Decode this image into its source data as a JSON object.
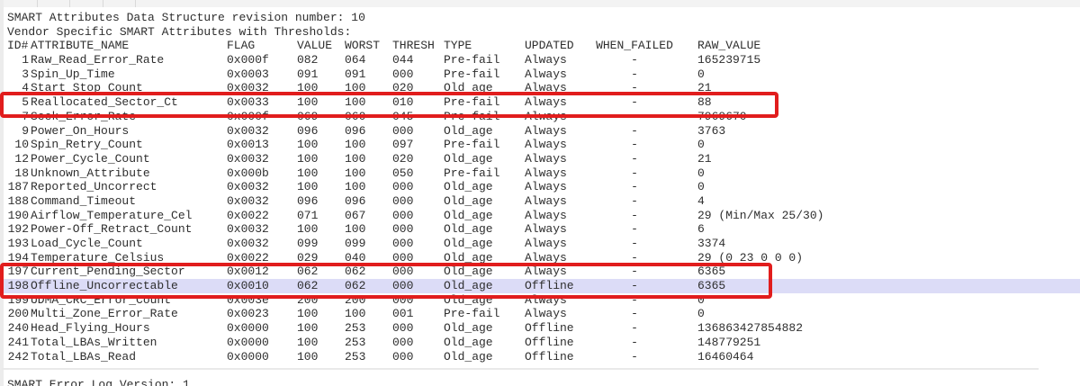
{
  "colors": {
    "background": "#ffffff",
    "text": "#2e2e2e",
    "annotation_red": "#e11d1d",
    "row_highlight": "#dcdcf7"
  },
  "report": {
    "revision_line": "SMART Attributes Data Structure revision number: 10",
    "vendor_line": "Vendor Specific SMART Attributes with Thresholds:",
    "footer_line": "SMART Error Log Version: 1"
  },
  "table": {
    "columns": [
      "ID#",
      "ATTRIBUTE_NAME",
      "FLAG",
      "VALUE",
      "WORST",
      "THRESH",
      "TYPE",
      "UPDATED",
      "WHEN_FAILED",
      "RAW_VALUE"
    ],
    "rows": [
      {
        "id": "1",
        "name": "Raw_Read_Error_Rate",
        "flag": "0x000f",
        "value": "082",
        "worst": "064",
        "thresh": "044",
        "type": "Pre-fail",
        "updated": "Always",
        "when_failed": "-",
        "raw_value": "165239715",
        "highlighted": false
      },
      {
        "id": "3",
        "name": "Spin_Up_Time",
        "flag": "0x0003",
        "value": "091",
        "worst": "091",
        "thresh": "000",
        "type": "Pre-fail",
        "updated": "Always",
        "when_failed": "-",
        "raw_value": "0",
        "highlighted": false
      },
      {
        "id": "4",
        "name": "Start_Stop_Count",
        "flag": "0x0032",
        "value": "100",
        "worst": "100",
        "thresh": "020",
        "type": "Old_age",
        "updated": "Always",
        "when_failed": "-",
        "raw_value": "21",
        "highlighted": false
      },
      {
        "id": "5",
        "name": "Reallocated_Sector_Ct",
        "flag": "0x0033",
        "value": "100",
        "worst": "100",
        "thresh": "010",
        "type": "Pre-fail",
        "updated": "Always",
        "when_failed": "-",
        "raw_value": "88",
        "highlighted": false
      },
      {
        "id": "7",
        "name": "Seek_Error_Rate",
        "flag": "0x000f",
        "value": "069",
        "worst": "060",
        "thresh": "045",
        "type": "Pre-fail",
        "updated": "Always",
        "when_failed": "-",
        "raw_value": "7969670",
        "highlighted": false
      },
      {
        "id": "9",
        "name": "Power_On_Hours",
        "flag": "0x0032",
        "value": "096",
        "worst": "096",
        "thresh": "000",
        "type": "Old_age",
        "updated": "Always",
        "when_failed": "-",
        "raw_value": "3763",
        "highlighted": false
      },
      {
        "id": "10",
        "name": "Spin_Retry_Count",
        "flag": "0x0013",
        "value": "100",
        "worst": "100",
        "thresh": "097",
        "type": "Pre-fail",
        "updated": "Always",
        "when_failed": "-",
        "raw_value": "0",
        "highlighted": false
      },
      {
        "id": "12",
        "name": "Power_Cycle_Count",
        "flag": "0x0032",
        "value": "100",
        "worst": "100",
        "thresh": "020",
        "type": "Old_age",
        "updated": "Always",
        "when_failed": "-",
        "raw_value": "21",
        "highlighted": false
      },
      {
        "id": "18",
        "name": "Unknown_Attribute",
        "flag": "0x000b",
        "value": "100",
        "worst": "100",
        "thresh": "050",
        "type": "Pre-fail",
        "updated": "Always",
        "when_failed": "-",
        "raw_value": "0",
        "highlighted": false
      },
      {
        "id": "187",
        "name": "Reported_Uncorrect",
        "flag": "0x0032",
        "value": "100",
        "worst": "100",
        "thresh": "000",
        "type": "Old_age",
        "updated": "Always",
        "when_failed": "-",
        "raw_value": "0",
        "highlighted": false
      },
      {
        "id": "188",
        "name": "Command_Timeout",
        "flag": "0x0032",
        "value": "096",
        "worst": "096",
        "thresh": "000",
        "type": "Old_age",
        "updated": "Always",
        "when_failed": "-",
        "raw_value": "4",
        "highlighted": false
      },
      {
        "id": "190",
        "name": "Airflow_Temperature_Cel",
        "flag": "0x0022",
        "value": "071",
        "worst": "067",
        "thresh": "000",
        "type": "Old_age",
        "updated": "Always",
        "when_failed": "-",
        "raw_value": "29 (Min/Max 25/30)",
        "highlighted": false
      },
      {
        "id": "192",
        "name": "Power-Off_Retract_Count",
        "flag": "0x0032",
        "value": "100",
        "worst": "100",
        "thresh": "000",
        "type": "Old_age",
        "updated": "Always",
        "when_failed": "-",
        "raw_value": "6",
        "highlighted": false
      },
      {
        "id": "193",
        "name": "Load_Cycle_Count",
        "flag": "0x0032",
        "value": "099",
        "worst": "099",
        "thresh": "000",
        "type": "Old_age",
        "updated": "Always",
        "when_failed": "-",
        "raw_value": "3374",
        "highlighted": false
      },
      {
        "id": "194",
        "name": "Temperature_Celsius",
        "flag": "0x0022",
        "value": "029",
        "worst": "040",
        "thresh": "000",
        "type": "Old_age",
        "updated": "Always",
        "when_failed": "-",
        "raw_value": "29 (0 23 0 0 0)",
        "highlighted": false
      },
      {
        "id": "197",
        "name": "Current_Pending_Sector",
        "flag": "0x0012",
        "value": "062",
        "worst": "062",
        "thresh": "000",
        "type": "Old_age",
        "updated": "Always",
        "when_failed": "-",
        "raw_value": "6365",
        "highlighted": false
      },
      {
        "id": "198",
        "name": "Offline_Uncorrectable",
        "flag": "0x0010",
        "value": "062",
        "worst": "062",
        "thresh": "000",
        "type": "Old_age",
        "updated": "Offline",
        "when_failed": "-",
        "raw_value": "6365",
        "highlighted": true
      },
      {
        "id": "199",
        "name": "UDMA_CRC_Error_Count",
        "flag": "0x003e",
        "value": "200",
        "worst": "200",
        "thresh": "000",
        "type": "Old_age",
        "updated": "Always",
        "when_failed": "-",
        "raw_value": "0",
        "highlighted": false
      },
      {
        "id": "200",
        "name": "Multi_Zone_Error_Rate",
        "flag": "0x0023",
        "value": "100",
        "worst": "100",
        "thresh": "001",
        "type": "Pre-fail",
        "updated": "Always",
        "when_failed": "-",
        "raw_value": "0",
        "highlighted": false
      },
      {
        "id": "240",
        "name": "Head_Flying_Hours",
        "flag": "0x0000",
        "value": "100",
        "worst": "253",
        "thresh": "000",
        "type": "Old_age",
        "updated": "Offline",
        "when_failed": "-",
        "raw_value": "136863427854882",
        "highlighted": false
      },
      {
        "id": "241",
        "name": "Total_LBAs_Written",
        "flag": "0x0000",
        "value": "100",
        "worst": "253",
        "thresh": "000",
        "type": "Old_age",
        "updated": "Offline",
        "when_failed": "-",
        "raw_value": "148779251",
        "highlighted": false
      },
      {
        "id": "242",
        "name": "Total_LBAs_Read",
        "flag": "0x0000",
        "value": "100",
        "worst": "253",
        "thresh": "000",
        "type": "Old_age",
        "updated": "Offline",
        "when_failed": "-",
        "raw_value": "16460464",
        "highlighted": false
      }
    ]
  },
  "annotations": {
    "red_boxes": [
      {
        "target_attribute_ids": [
          "5"
        ]
      },
      {
        "target_attribute_ids": [
          "197",
          "198"
        ]
      }
    ]
  }
}
